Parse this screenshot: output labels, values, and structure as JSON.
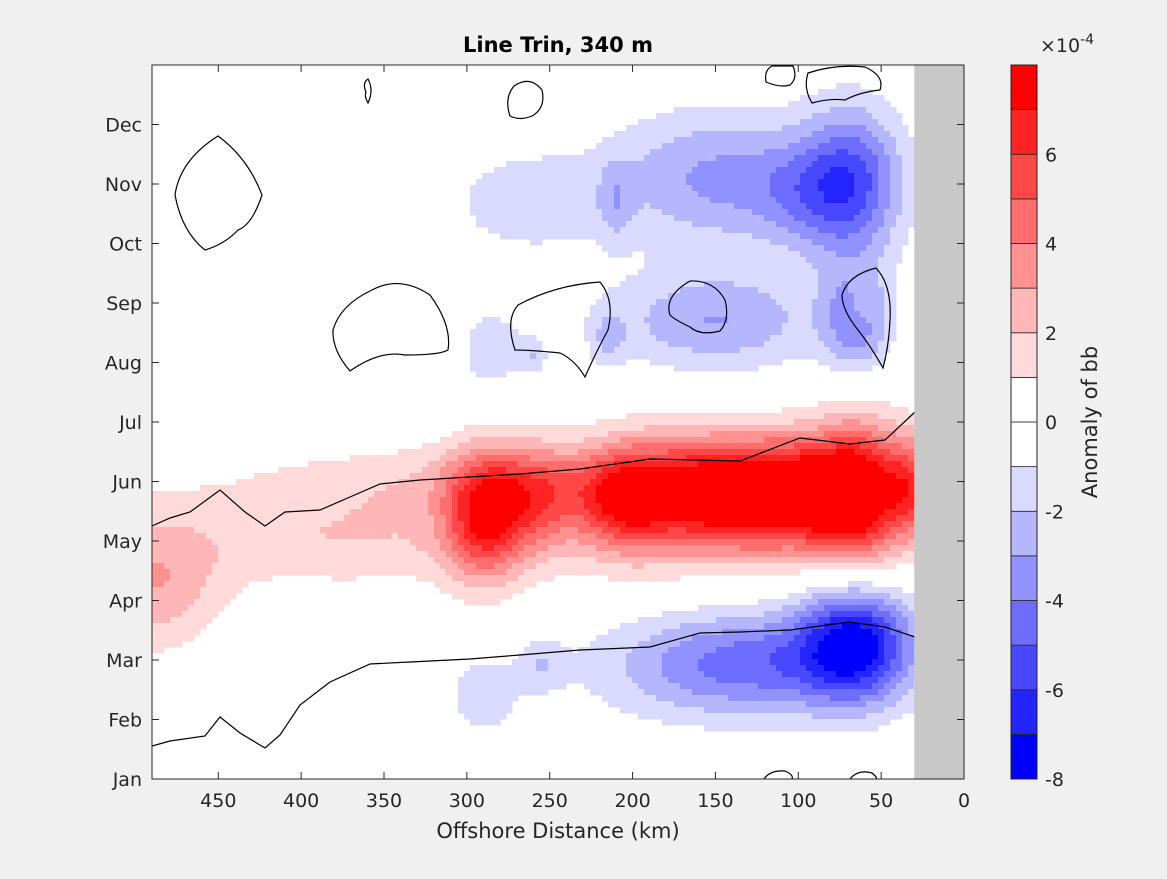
{
  "chart_data": {
    "type": "heatmap",
    "title": "Line Trin, 340 m",
    "xlabel": "Offshore Distance (km)",
    "ylabel": "",
    "xlim": [
      490,
      0
    ],
    "x_reversed": true,
    "x_ticks": [
      450,
      400,
      350,
      300,
      250,
      200,
      150,
      100,
      50,
      0
    ],
    "y_ticks": [
      "Jan",
      "Feb",
      "Mar",
      "Apr",
      "May",
      "Jun",
      "Jul",
      "Aug",
      "Sep",
      "Oct",
      "Nov",
      "Dec"
    ],
    "no_data_region_km": [
      0,
      30
    ],
    "no_data_color": "#c8c8c8",
    "colorbar": {
      "label": "Anomaly of bb",
      "exponent": "×10",
      "exponent_power": "-4",
      "ticks": [
        -8,
        -6,
        -4,
        -2,
        0,
        2,
        4,
        6
      ],
      "limits": [
        -8,
        8
      ],
      "levels": [
        {
          "from": -8,
          "to": -7,
          "color": "#0000ff"
        },
        {
          "from": -7,
          "to": -6,
          "color": "#2424ff"
        },
        {
          "from": -6,
          "to": -5,
          "color": "#4848ff"
        },
        {
          "from": -5,
          "to": -4,
          "color": "#6d6dff"
        },
        {
          "from": -4,
          "to": -3,
          "color": "#9191ff"
        },
        {
          "from": -3,
          "to": -2,
          "color": "#b6b6ff"
        },
        {
          "from": -2,
          "to": -1,
          "color": "#dadaff"
        },
        {
          "from": -1,
          "to": 0,
          "color": "#ffffff"
        },
        {
          "from": 0,
          "to": 1,
          "color": "#ffffff"
        },
        {
          "from": 1,
          "to": 2,
          "color": "#ffdada"
        },
        {
          "from": 2,
          "to": 3,
          "color": "#ffb6b6"
        },
        {
          "from": 3,
          "to": 4,
          "color": "#ff9191"
        },
        {
          "from": 4,
          "to": 5,
          "color": "#ff6d6d"
        },
        {
          "from": 5,
          "to": 6,
          "color": "#ff4848"
        },
        {
          "from": 6,
          "to": 7,
          "color": "#ff2424"
        },
        {
          "from": 7,
          "to": 8,
          "color": "#ff0000"
        }
      ]
    },
    "anomaly_features": [
      {
        "x": 150,
        "month": 4.8,
        "sx": 38,
        "sy": 0.65,
        "value": 7.0
      },
      {
        "x": 65,
        "month": 4.8,
        "sx": 20,
        "sy": 0.8,
        "value": 8.2
      },
      {
        "x": 105,
        "month": 4.8,
        "sx": 22,
        "sy": 0.6,
        "value": 4.6
      },
      {
        "x": 205,
        "month": 4.7,
        "sx": 18,
        "sy": 0.6,
        "value": 4.2
      },
      {
        "x": 32,
        "month": 4.9,
        "sx": 10,
        "sy": 0.6,
        "value": 4.0
      },
      {
        "x": 290,
        "month": 4.4,
        "sx": 17,
        "sy": 0.75,
        "value": 5.5
      },
      {
        "x": 258,
        "month": 4.7,
        "sx": 20,
        "sy": 0.6,
        "value": 3.4
      },
      {
        "x": 300,
        "month": 5.0,
        "sx": 110,
        "sy": 0.45,
        "value": 1.5
      },
      {
        "x": 380,
        "month": 4.0,
        "sx": 70,
        "sy": 0.55,
        "value": 1.8
      },
      {
        "x": 490,
        "month": 3.3,
        "sx": 30,
        "sy": 0.8,
        "value": 2.8
      },
      {
        "x": 175,
        "month": 4.6,
        "sx": 90,
        "sy": 0.9,
        "value": 1.6
      },
      {
        "x": 150,
        "month": 1.9,
        "sx": 55,
        "sy": 0.65,
        "value": -3.0
      },
      {
        "x": 65,
        "month": 2.3,
        "sx": 24,
        "sy": 0.7,
        "value": -6.6
      },
      {
        "x": 110,
        "month": 2.0,
        "sx": 45,
        "sy": 0.6,
        "value": -2.0
      },
      {
        "x": 290,
        "month": 1.4,
        "sx": 15,
        "sy": 0.5,
        "value": -1.7
      },
      {
        "x": 255,
        "month": 1.9,
        "sx": 10,
        "sy": 0.3,
        "value": -1.6
      },
      {
        "x": 150,
        "month": 7.7,
        "sx": 45,
        "sy": 0.6,
        "value": -3.0
      },
      {
        "x": 65,
        "month": 7.7,
        "sx": 14,
        "sy": 0.6,
        "value": -3.6
      },
      {
        "x": 285,
        "month": 7.2,
        "sx": 15,
        "sy": 0.55,
        "value": -1.6
      },
      {
        "x": 260,
        "month": 7.1,
        "sx": 6,
        "sy": 0.22,
        "value": -1.6
      },
      {
        "x": 215,
        "month": 7.4,
        "sx": 8,
        "sy": 0.35,
        "value": -1.6
      },
      {
        "x": 150,
        "month": 10.1,
        "sx": 45,
        "sy": 0.8,
        "value": -3.2
      },
      {
        "x": 68,
        "month": 10.0,
        "sx": 22,
        "sy": 0.9,
        "value": -5.0
      },
      {
        "x": 265,
        "month": 9.7,
        "sx": 35,
        "sy": 0.65,
        "value": -1.6
      },
      {
        "x": 210,
        "month": 9.7,
        "sx": 7,
        "sy": 0.5,
        "value": -1.5
      },
      {
        "x": 100,
        "month": 9.8,
        "sx": 22,
        "sy": 0.6,
        "value": -1.7
      },
      {
        "x": 62,
        "month": 8.0,
        "sx": 5,
        "sy": 0.3,
        "value": 1.7
      },
      {
        "x": 440,
        "month": 10.3,
        "sx": 18,
        "sy": 0.6,
        "value": 0.4
      }
    ]
  }
}
